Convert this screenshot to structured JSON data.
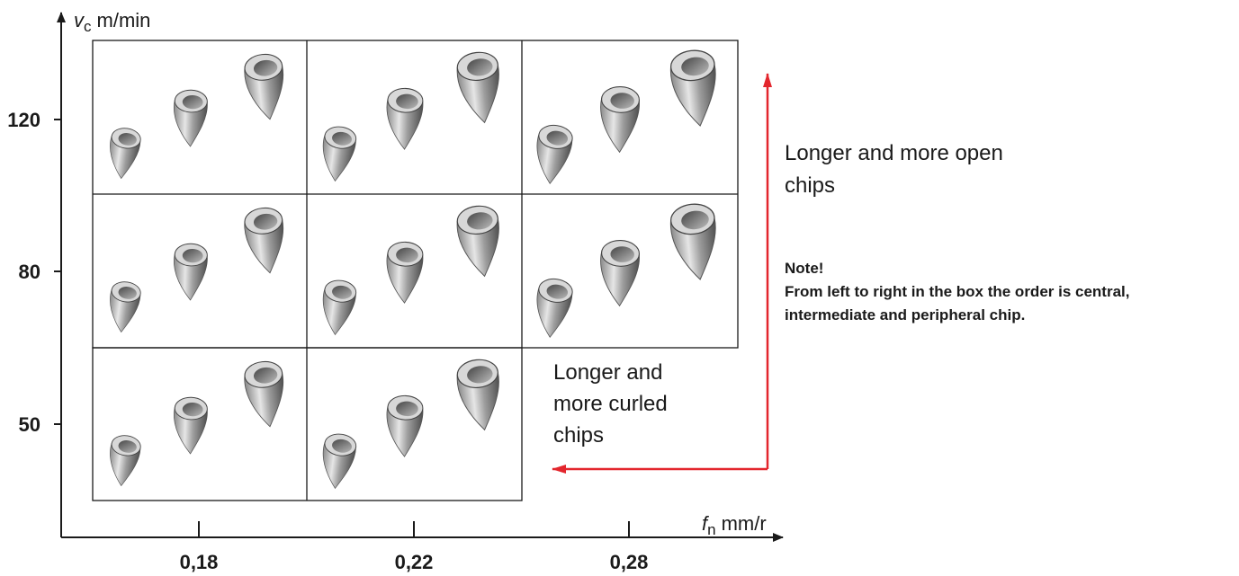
{
  "y_axis": {
    "symbol": "v",
    "subscript": "c",
    "unit": "m/min",
    "ticks": [
      "120",
      "80",
      "50"
    ]
  },
  "x_axis": {
    "symbol": "f",
    "subscript": "n",
    "unit": "mm/r",
    "ticks": [
      "0,18",
      "0,22",
      "0,28"
    ]
  },
  "open_chips": {
    "lines": [
      "Longer and more open",
      "chips"
    ]
  },
  "curled_chips": {
    "lines": [
      "Longer and",
      "more curled",
      "chips"
    ]
  },
  "note": {
    "title": "Note!",
    "lines": [
      "From left to right in the box the order is central,",
      "intermediate and peripheral chip."
    ]
  }
}
